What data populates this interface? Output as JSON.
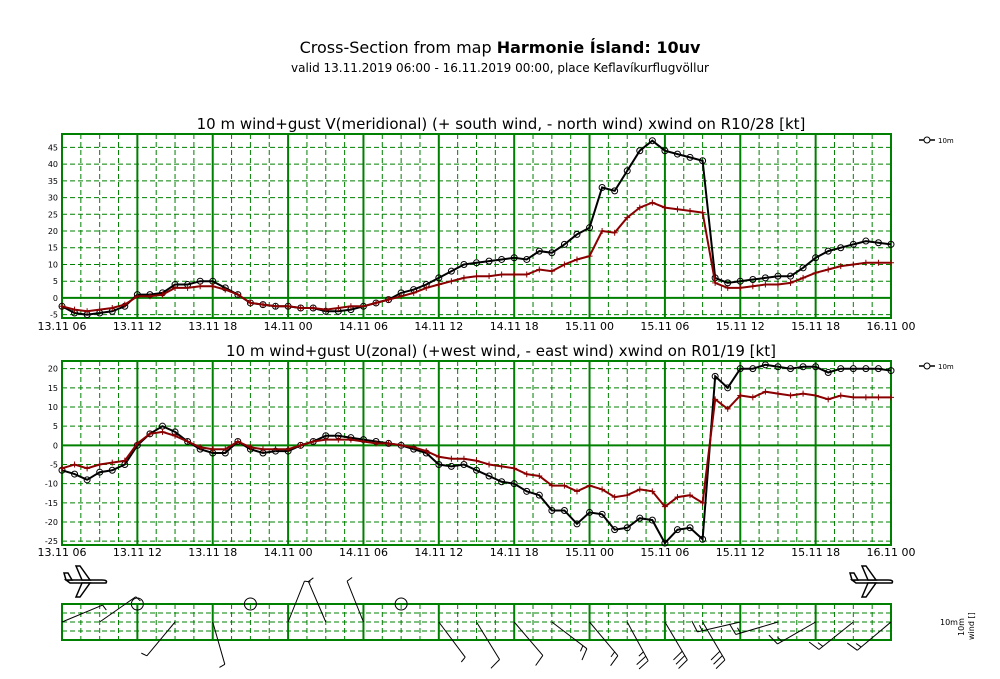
{
  "header": {
    "title_prefix": "Cross-Section from map ",
    "title_model": "Harmonie Ísland: 10uv",
    "subtitle": "valid 13.11.2019 06:00 - 16.11.2019 00:00, place Keflavíkurflugvöllur"
  },
  "colors": {
    "grid": "#008000",
    "wind_line": "#000000",
    "mean_line": "#8b0000"
  },
  "x_tick_labels": [
    "13.11 06",
    "13.11 12",
    "13.11 18",
    "14.11 00",
    "14.11 06",
    "14.11 12",
    "14.11 18",
    "15.11 00",
    "15.11 06",
    "15.11 12",
    "15.11 18",
    "16.11 00"
  ],
  "chart_data": [
    {
      "type": "line",
      "title": "10 m wind+gust V(meridional) (+ south wind, - north wind) xwind on R10/28 [kt]",
      "x_unit": "hours from 13.11 06",
      "xlim": [
        0,
        66
      ],
      "ylim": [
        -6,
        49
      ],
      "yticks": [
        -5,
        0,
        5,
        10,
        15,
        20,
        25,
        30,
        35,
        40,
        45
      ],
      "grid": true,
      "legend": "top-right",
      "legend_label": "10m",
      "x": [
        0,
        1,
        2,
        3,
        4,
        5,
        6,
        7,
        8,
        9,
        10,
        11,
        12,
        13,
        14,
        15,
        16,
        17,
        18,
        19,
        20,
        21,
        22,
        23,
        24,
        25,
        26,
        27,
        28,
        29,
        30,
        31,
        32,
        33,
        34,
        35,
        36,
        37,
        38,
        39,
        40,
        41,
        42,
        43,
        44,
        45,
        46,
        47,
        48,
        49,
        50,
        51,
        52,
        53,
        54,
        55,
        56,
        57,
        58,
        59,
        60,
        61,
        62,
        63,
        64,
        65,
        66
      ],
      "series": [
        {
          "name": "10m",
          "role": "gust",
          "values": [
            -2.5,
            -4.5,
            -5,
            -4.5,
            -4,
            -2.5,
            1,
            1,
            1.5,
            4,
            4,
            5,
            5,
            3,
            1,
            -1.5,
            -2,
            -2.5,
            -2.5,
            -3,
            -3,
            -4,
            -4,
            -3.5,
            -2.5,
            -1.5,
            -0.5,
            1.5,
            2.5,
            4,
            6,
            8,
            10,
            10.5,
            11,
            11.5,
            12,
            11.5,
            14,
            13.5,
            16,
            19,
            21,
            33,
            32,
            38,
            44,
            47,
            44,
            43,
            42,
            41,
            6,
            4.5,
            5,
            5.5,
            6,
            6.5,
            6.5,
            9,
            12,
            14,
            15,
            16,
            17,
            16.5,
            16
          ]
        },
        {
          "name": "",
          "role": "mean",
          "values": [
            -2.5,
            -3.5,
            -4,
            -3.5,
            -3,
            -2,
            0.5,
            0.5,
            1,
            3,
            3,
            3.5,
            3.5,
            2.5,
            1,
            -1.5,
            -2,
            -2.5,
            -2.5,
            -3,
            -3,
            -3.5,
            -3,
            -2.5,
            -2.5,
            -1.5,
            -0.5,
            0.5,
            1.5,
            3,
            4,
            5,
            6,
            6.5,
            6.5,
            7,
            7,
            7,
            8.5,
            8,
            10,
            11.5,
            12.5,
            20,
            19.5,
            24,
            27,
            28.5,
            27,
            26.5,
            26,
            25.5,
            4.5,
            3,
            3,
            3.5,
            4,
            4,
            4.5,
            6,
            7.5,
            8.5,
            9.5,
            10,
            10.5,
            10.5,
            10.5
          ]
        }
      ]
    },
    {
      "type": "line",
      "title": "10 m wind+gust U(zonal) (+west wind, - east wind) xwind on R01/19 [kt]",
      "x_unit": "hours from 13.11 06",
      "xlim": [
        0,
        66
      ],
      "ylim": [
        -26,
        22
      ],
      "yticks": [
        -25,
        -20,
        -15,
        -10,
        -5,
        0,
        5,
        10,
        15,
        20
      ],
      "grid": true,
      "legend": "top-right",
      "legend_label": "10m",
      "x": [
        0,
        1,
        2,
        3,
        4,
        5,
        6,
        7,
        8,
        9,
        10,
        11,
        12,
        13,
        14,
        15,
        16,
        17,
        18,
        19,
        20,
        21,
        22,
        23,
        24,
        25,
        26,
        27,
        28,
        29,
        30,
        31,
        32,
        33,
        34,
        35,
        36,
        37,
        38,
        39,
        40,
        41,
        42,
        43,
        44,
        45,
        46,
        47,
        48,
        49,
        50,
        51,
        52,
        53,
        54,
        55,
        56,
        57,
        58,
        59,
        60,
        61,
        62,
        63,
        64,
        65,
        66
      ],
      "series": [
        {
          "name": "10m",
          "role": "gust",
          "values": [
            -6.5,
            -7.5,
            -9,
            -7,
            -6.5,
            -5,
            0,
            3,
            5,
            3.5,
            1,
            -1,
            -2,
            -2,
            1,
            -1,
            -2,
            -1.5,
            -1.5,
            0,
            1,
            2.5,
            2.5,
            2,
            1.5,
            1,
            0.5,
            0,
            -1,
            -2,
            -5,
            -5.5,
            -5,
            -6.5,
            -8,
            -9.5,
            -10,
            -12,
            -13,
            -17,
            -17,
            -20.5,
            -17.5,
            -18,
            -22,
            -21.5,
            -19,
            -19.5,
            -25.5,
            -22,
            -21.5,
            -24.5,
            18,
            15,
            20,
            20,
            21,
            20.5,
            20,
            20.5,
            20.5,
            19,
            20,
            20,
            20,
            20,
            19.5
          ]
        },
        {
          "name": "",
          "role": "mean",
          "values": [
            -6,
            -5,
            -6,
            -5,
            -4.5,
            -4,
            0.5,
            3,
            3.5,
            2.5,
            1,
            -0.5,
            -1,
            -1,
            1,
            -0.5,
            -1,
            -1,
            -1,
            0,
            1,
            1.5,
            1.5,
            1.5,
            1,
            0.5,
            0.5,
            0,
            -0.5,
            -1.5,
            -3,
            -3.5,
            -3.5,
            -4,
            -5,
            -5.5,
            -6,
            -7.5,
            -8,
            -10.5,
            -10.5,
            -12,
            -10.5,
            -11.5,
            -13.5,
            -13,
            -11.5,
            -12,
            -16,
            -13.5,
            -13,
            -15,
            12,
            9.5,
            13,
            12.5,
            14,
            13.5,
            13,
            13.5,
            13,
            12,
            13,
            12.5,
            12.5,
            12.5,
            12.5
          ]
        }
      ]
    }
  ],
  "barbs": {
    "label_a": "10m",
    "label_b": "10m",
    "label_c": "wind []"
  }
}
